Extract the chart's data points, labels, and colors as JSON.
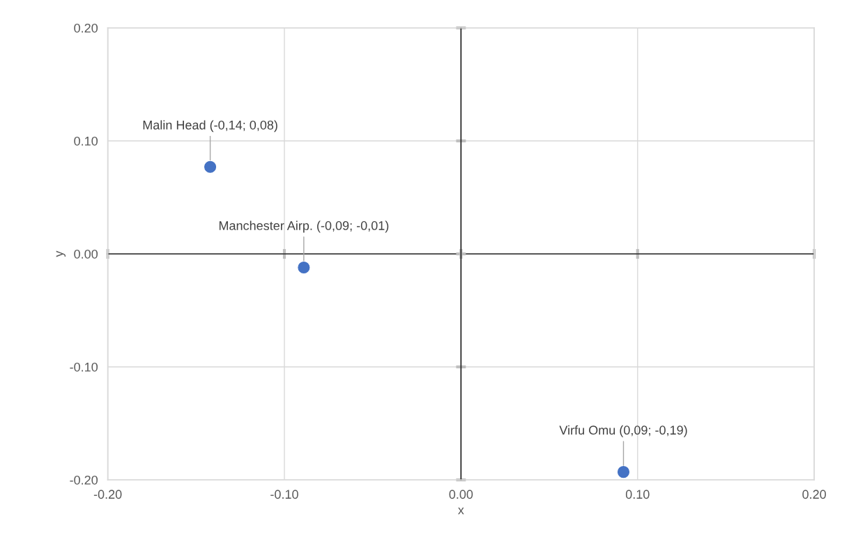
{
  "chart_data": {
    "type": "scatter",
    "xlabel": "x",
    "ylabel": "y",
    "x": [
      -0.142,
      -0.089,
      0.092
    ],
    "values": [
      0.077,
      -0.012,
      -0.193
    ],
    "color": "#4472c4",
    "marker": "circle",
    "xlim": [
      -0.2,
      0.2
    ],
    "xticks": [
      {
        "value": -0.2,
        "label": "-0.20"
      },
      {
        "value": -0.1,
        "label": "-0.10"
      },
      {
        "value": 0,
        "label": "0.00"
      },
      {
        "value": 0.1,
        "label": "0.10"
      },
      {
        "value": 0.2,
        "label": "0.20"
      }
    ],
    "ylim": [
      -0.2,
      0.2
    ],
    "yticks": [
      {
        "value": -0.2,
        "label": "-0.20"
      },
      {
        "value": -0.1,
        "label": "-0.10"
      },
      {
        "value": 0,
        "label": "0.00"
      },
      {
        "value": 0.1,
        "label": "0.10"
      },
      {
        "value": 0.2,
        "label": "0.20"
      }
    ],
    "grid": true,
    "annotations": [
      {
        "text": "Malin Head (-0,14; 0,08)",
        "x": -0.142,
        "y": 0.077
      },
      {
        "text": "Manchester Airp. (-0,09; -0,01)",
        "x": -0.089,
        "y": -0.012
      },
      {
        "text": "Virfu Omu (0,09; -0,19)",
        "x": 0.092,
        "y": -0.193
      }
    ]
  }
}
